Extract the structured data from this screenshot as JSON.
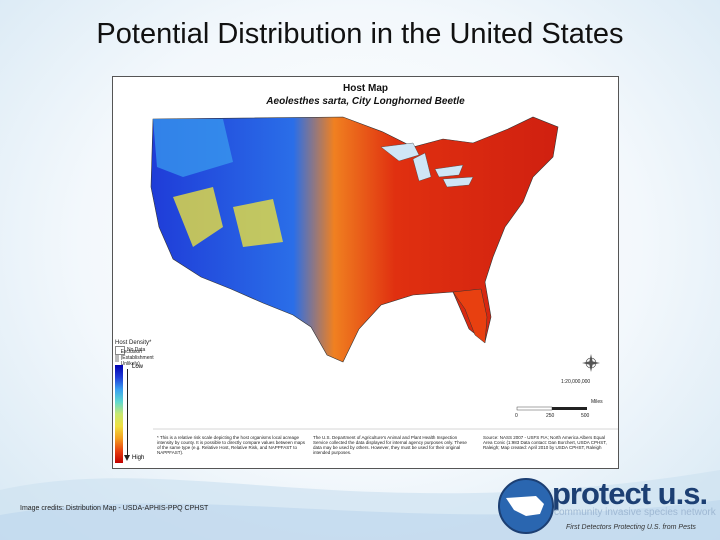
{
  "slide": {
    "title": "Potential Distribution in the United States",
    "credits": "Image credits: Distribution Map - USDA-APHIS-PPQ CPHST"
  },
  "map": {
    "heading": "Host Map",
    "subheading": "Aeolesthes sarta, City Longhorned Beetle",
    "legend": {
      "title": "Host Density*",
      "no_data": "No Data",
      "exclusion": "Exclusion (Establishment Unlikely)",
      "low": "Low",
      "high": "High",
      "colors": [
        "#0000b0",
        "#2050e0",
        "#40a8f0",
        "#70e0d0",
        "#d8f070",
        "#f8e040",
        "#f4a020",
        "#e84010",
        "#c00000"
      ]
    },
    "scale": {
      "ratio": "1:20,000,000",
      "miles_label": "Miles",
      "ticks": [
        "0",
        "250",
        "500"
      ]
    },
    "note_left": "* This is a relative risk scale depicting the host organisms local acreage intensity by county. It is possible to directly compare values between maps of the same type (e.g. Relative Host, Relative Risk, and NAPPFAST to NAPPFAST).",
    "note_mid": "The U.S. Department of Agriculture's Animal and Plant Health Inspection Service collected the data displayed for internal agency purposes only. These data may be used by others. However, they must be used for their original intended purposes.",
    "note_right": "Source: NASS 2007 - USFS FIA; North America Albers Equal Area Conic (1:983 Data contact: Dan Borchert, USDA CPHST, Raleigh; Map created: April 2010 by USDA CPHST, Raleigh"
  },
  "logo": {
    "brand": "protect u.s.",
    "subtitle": "community invasive species network",
    "tagline": "First Detectors Protecting U.S. from Pests"
  }
}
